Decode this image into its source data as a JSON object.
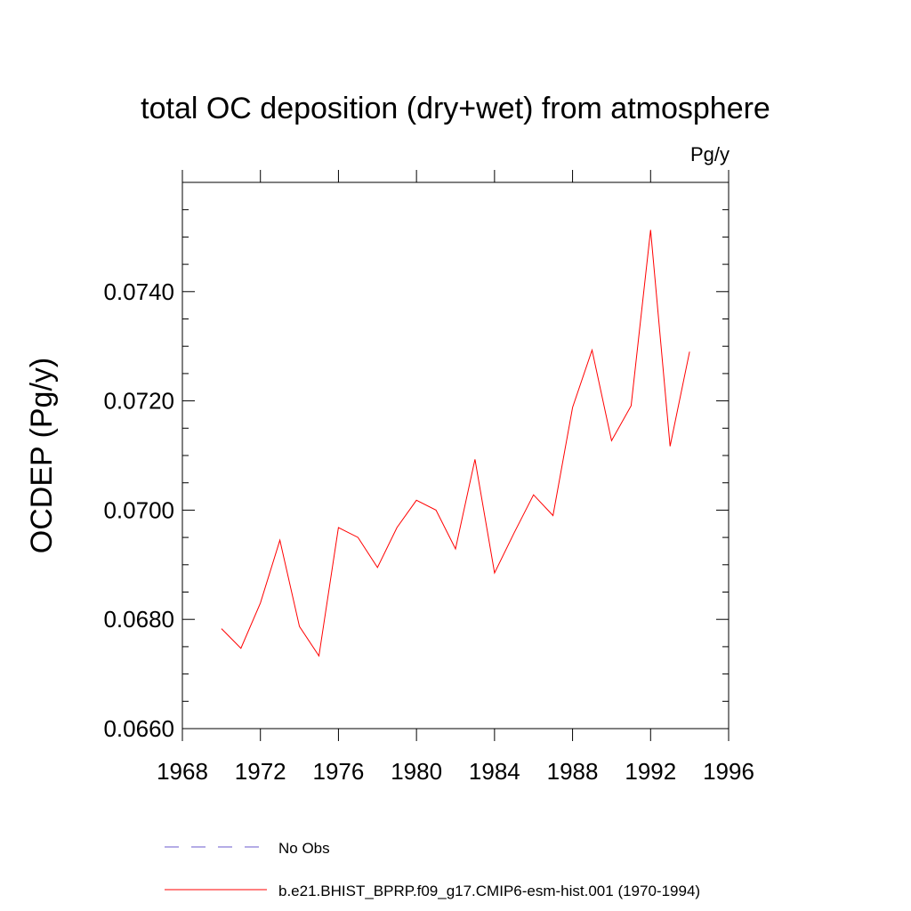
{
  "chart_data": {
    "type": "line",
    "title": "total OC deposition (dry+wet) from atmosphere",
    "units_label": "Pg/y",
    "xlabel": "",
    "ylabel": "OCDEP  (Pg/y)",
    "xlim": [
      1968,
      1996
    ],
    "ylim": [
      0.066,
      0.076
    ],
    "x_ticks": [
      1968,
      1972,
      1976,
      1980,
      1984,
      1988,
      1992,
      1996
    ],
    "x_tick_labels": [
      "1968",
      "1972",
      "1976",
      "1980",
      "1984",
      "1988",
      "1992",
      "1996"
    ],
    "y_ticks": [
      0.066,
      0.068,
      0.07,
      0.072,
      0.074
    ],
    "y_tick_labels": [
      "0.0660",
      "0.0680",
      "0.0700",
      "0.0720",
      "0.0740"
    ],
    "grid": false,
    "legend_placement": "bottom",
    "series": [
      {
        "name": "No Obs",
        "color": "#6a5acd",
        "dash": "dashed",
        "x": [],
        "values": []
      },
      {
        "name": "b.e21.BHIST_BPRP.f09_g17.CMIP6-esm-hist.001 (1970-1994)",
        "color": "#ff0000",
        "dash": "solid",
        "x": [
          1970,
          1971,
          1972,
          1973,
          1974,
          1975,
          1976,
          1977,
          1978,
          1979,
          1980,
          1981,
          1982,
          1983,
          1984,
          1985,
          1986,
          1987,
          1988,
          1989,
          1990,
          1991,
          1992,
          1993,
          1994
        ],
        "values": [
          0.06783,
          0.06747,
          0.0683,
          0.06945,
          0.06787,
          0.06733,
          0.06968,
          0.0695,
          0.06895,
          0.06968,
          0.07018,
          0.07,
          0.06929,
          0.07093,
          0.06885,
          0.06958,
          0.07028,
          0.0699,
          0.07188,
          0.07293,
          0.07127,
          0.07191,
          0.07513,
          0.07117,
          0.0729
        ]
      }
    ]
  }
}
